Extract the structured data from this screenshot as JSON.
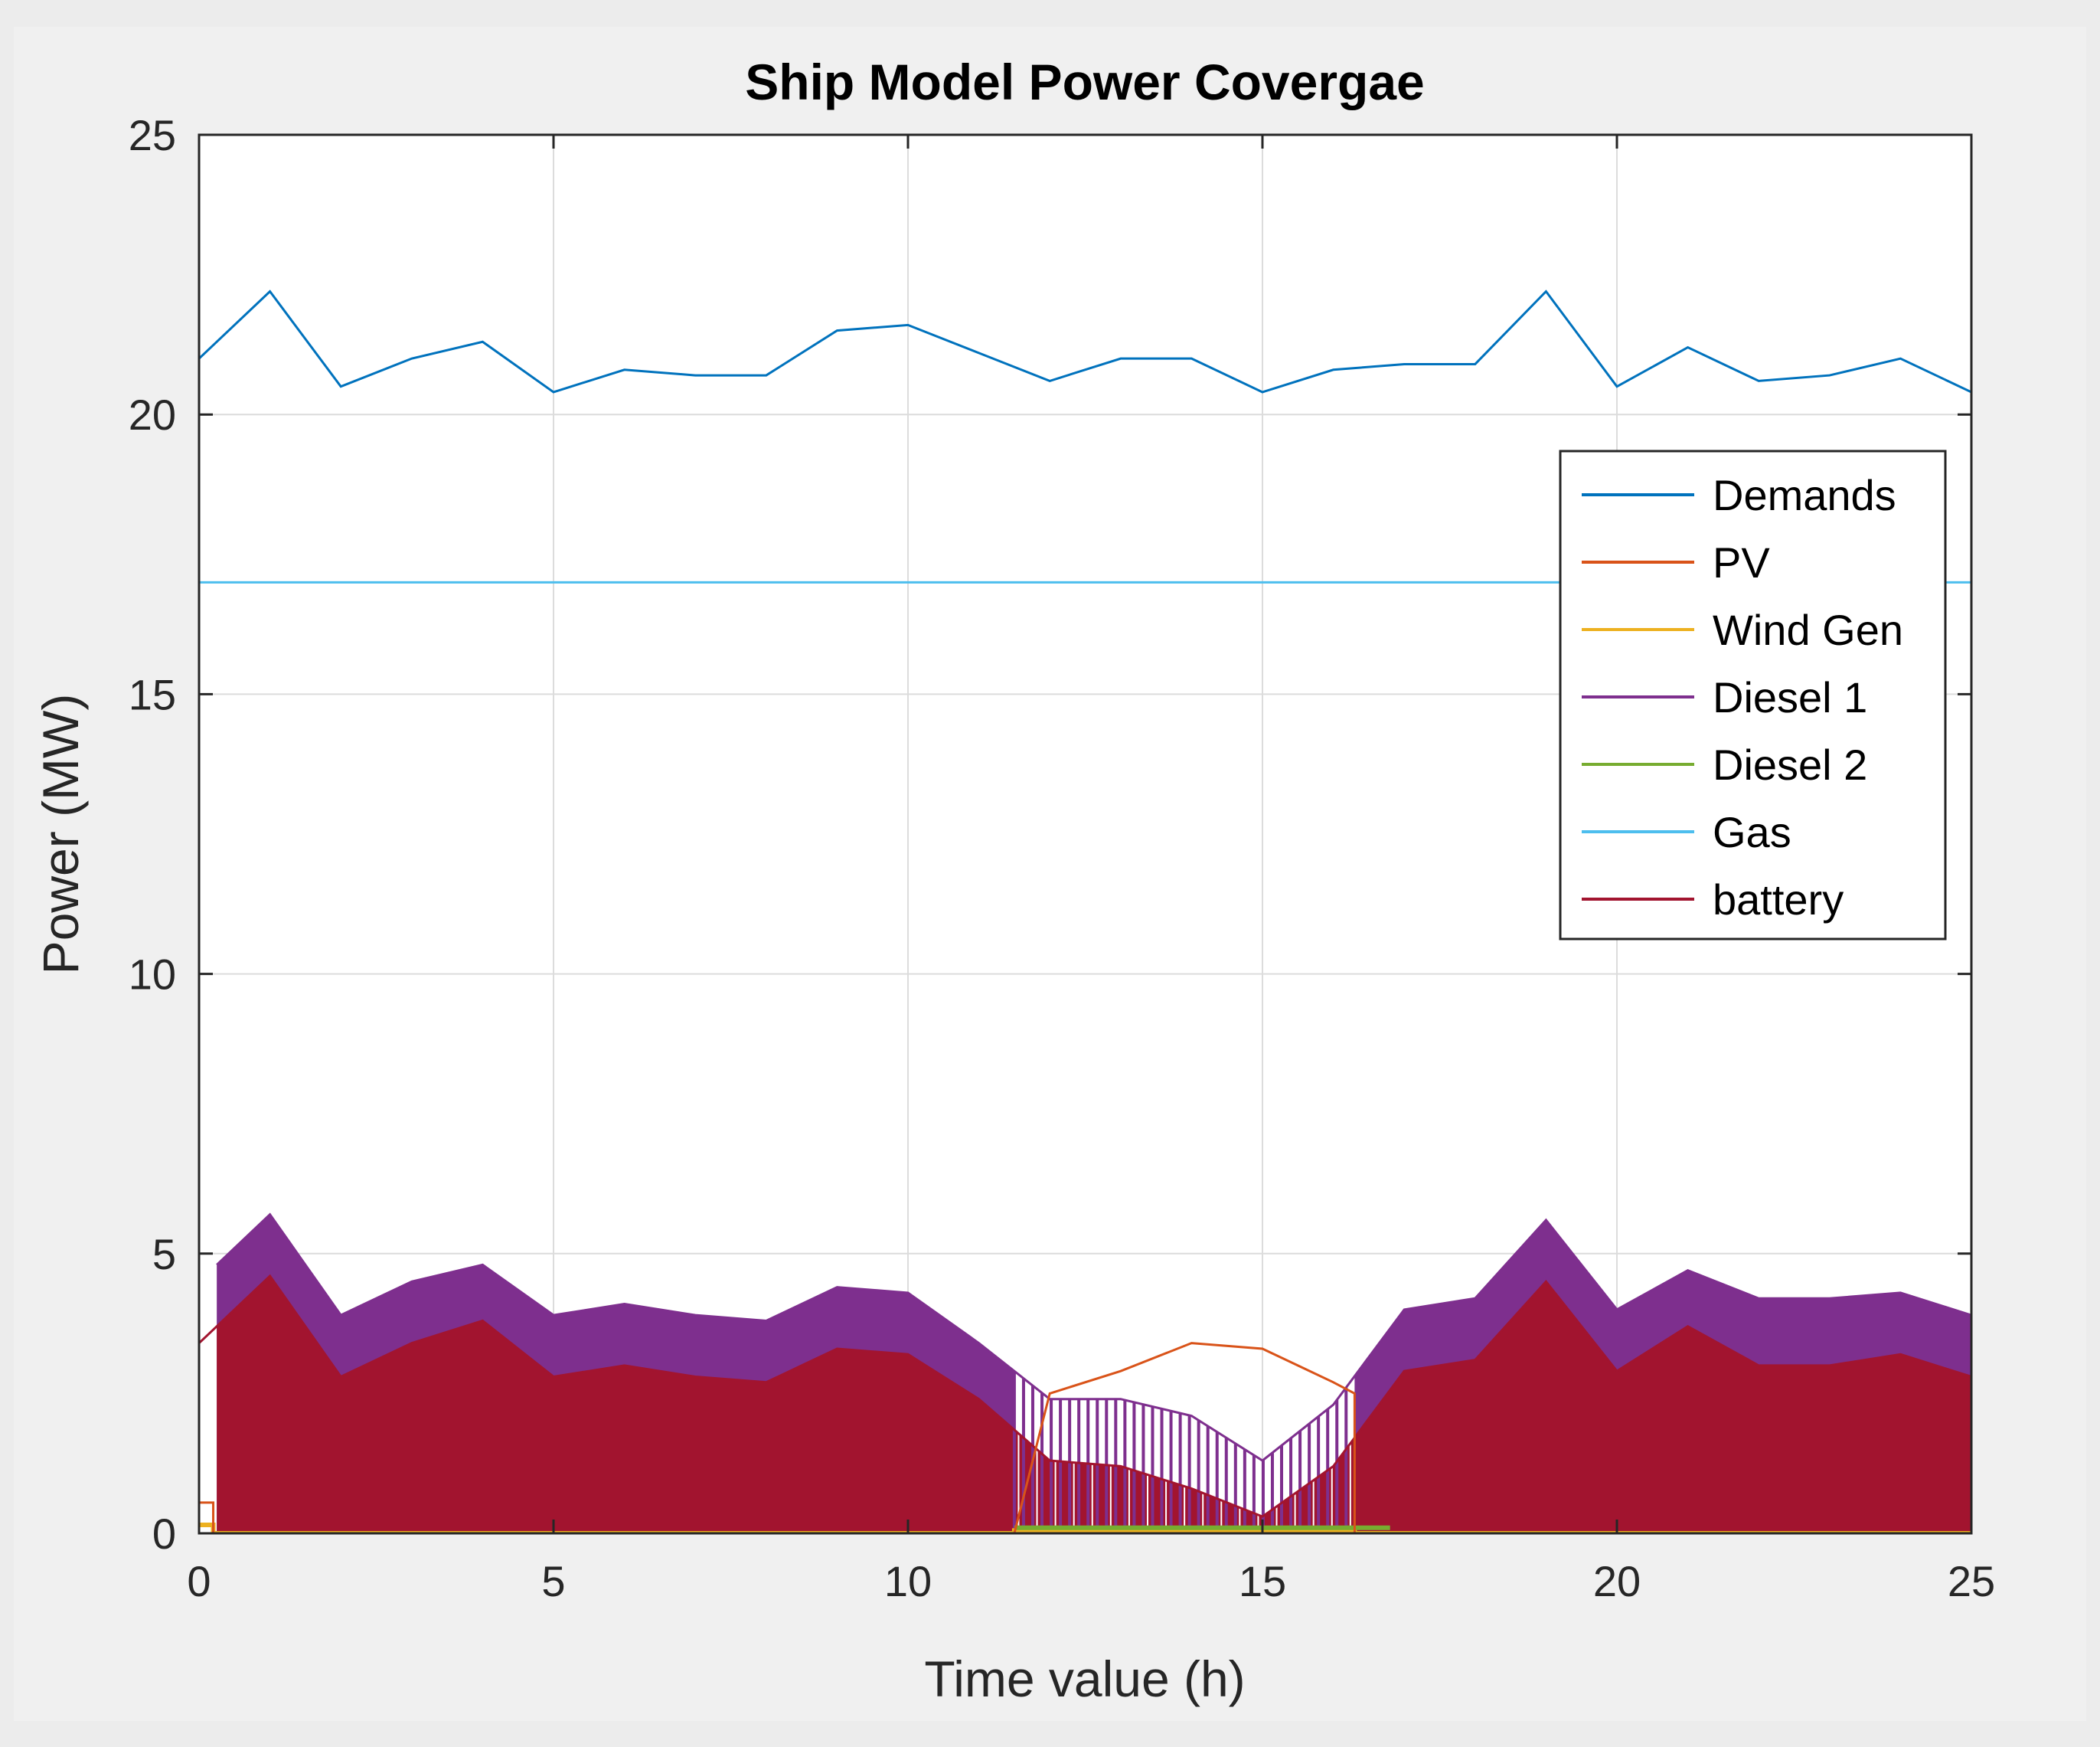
{
  "chart_data": {
    "type": "line",
    "title": "Ship Model Power Covergae",
    "xlabel": "Time value (h)",
    "ylabel": "Power (MW)",
    "xlim": [
      0,
      25
    ],
    "ylim": [
      0,
      25
    ],
    "xticks": [
      0,
      5,
      10,
      15,
      20,
      25
    ],
    "yticks": [
      0,
      5,
      10,
      15,
      20,
      25
    ],
    "grid": true,
    "legend_position": "top-right",
    "series": [
      {
        "name": "Demands",
        "color": "#0072BD",
        "x": [
          0,
          1,
          2,
          3,
          4,
          5,
          6,
          7,
          8,
          9,
          10,
          11,
          12,
          13,
          14,
          15,
          16,
          17,
          18,
          19,
          20,
          21,
          22,
          23,
          24,
          25
        ],
        "values": [
          21.0,
          22.2,
          20.5,
          21.0,
          21.3,
          20.4,
          20.8,
          20.7,
          20.7,
          21.5,
          21.6,
          21.1,
          20.6,
          21.0,
          21.0,
          20.4,
          20.8,
          20.9,
          20.9,
          22.2,
          20.5,
          21.2,
          20.6,
          20.7,
          21.0,
          20.4
        ]
      },
      {
        "name": "PV",
        "color": "#D95319",
        "x": [
          0,
          0.2,
          0.2,
          11.5,
          12,
          13,
          14,
          15,
          15.5,
          16,
          16.3,
          16.3,
          25
        ],
        "values": [
          0.55,
          0.55,
          0.0,
          0.0,
          2.5,
          2.9,
          3.4,
          3.3,
          3.0,
          2.7,
          2.5,
          0.0,
          0.0
        ]
      },
      {
        "name": "Wind Gen",
        "color": "#EDB120",
        "x": [
          0,
          0.2,
          0.2,
          11.5,
          11.5,
          16.3,
          16.3,
          25
        ],
        "values": [
          0.15,
          0.15,
          0.0,
          0.0,
          0.05,
          0.05,
          0.0,
          0.0
        ]
      },
      {
        "name": "Diesel 1",
        "color": "#7E2F8E",
        "x": [
          0.25,
          1,
          2,
          3,
          4,
          5,
          6,
          7,
          8,
          9,
          10,
          11,
          12,
          13,
          14,
          15,
          16,
          17,
          18,
          19,
          20,
          21,
          22,
          23,
          24,
          25
        ],
        "values": [
          4.8,
          5.7,
          3.9,
          4.5,
          4.8,
          3.9,
          4.1,
          3.9,
          3.8,
          4.4,
          4.3,
          3.4,
          2.4,
          2.4,
          2.1,
          1.3,
          2.3,
          4.0,
          4.2,
          5.6,
          4.0,
          4.7,
          4.2,
          4.2,
          4.3,
          3.9
        ]
      },
      {
        "name": "Diesel 2",
        "color": "#77AC30",
        "x": [
          11.5,
          16.8
        ],
        "values": [
          0.1,
          0.1
        ]
      },
      {
        "name": "Gas",
        "color": "#4DBEEE",
        "x": [
          0,
          0,
          25
        ],
        "values": [
          0,
          17.0,
          17.0
        ]
      },
      {
        "name": "battery",
        "color": "#A2142F",
        "x": [
          0,
          1,
          2,
          3,
          4,
          5,
          6,
          7,
          8,
          9,
          10,
          11,
          12,
          13,
          14,
          15,
          16,
          17,
          18,
          19,
          20,
          21,
          22,
          23,
          24,
          25
        ],
        "values": [
          3.4,
          4.6,
          2.8,
          3.4,
          3.8,
          2.8,
          3.0,
          2.8,
          2.7,
          3.3,
          3.2,
          2.4,
          1.3,
          1.2,
          0.8,
          0.3,
          1.2,
          2.9,
          3.1,
          4.5,
          2.9,
          3.7,
          3.0,
          3.0,
          3.2,
          2.8
        ]
      }
    ]
  }
}
